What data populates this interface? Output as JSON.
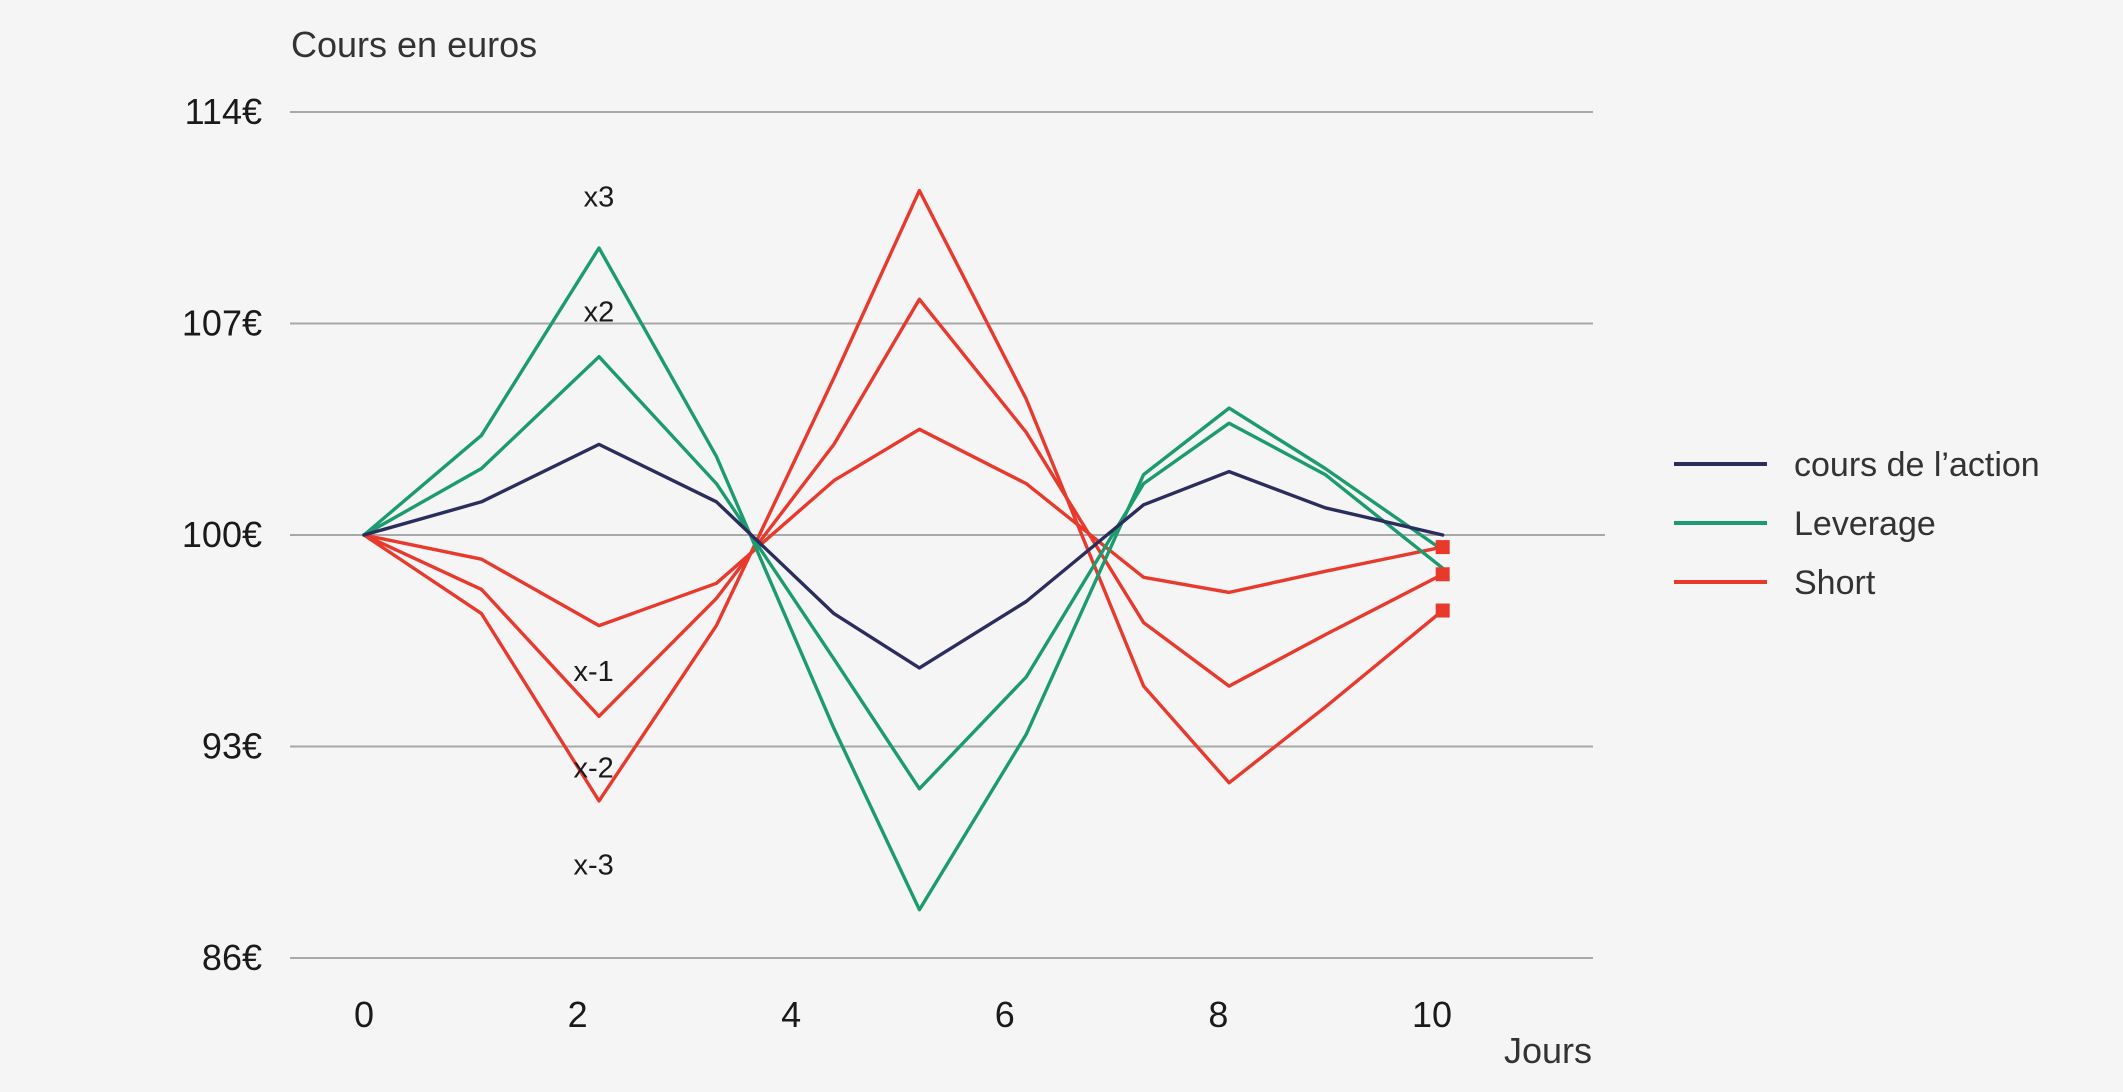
{
  "chart_data": {
    "type": "line",
    "ylabel": "Cours en euros",
    "xlabel": "Jours",
    "xlim": [
      -0.3,
      11.5
    ],
    "ylim": [
      86,
      114
    ],
    "x_ticks": [
      0,
      2,
      4,
      6,
      8,
      10
    ],
    "x_tick_labels": [
      "0",
      "2",
      "4",
      "6",
      "8",
      "10"
    ],
    "y_ticks": [
      86,
      93,
      100,
      107,
      114
    ],
    "y_tick_labels": [
      "86€",
      "93€",
      "100€",
      "107€",
      "114€"
    ],
    "grid": "horizontal",
    "legend_position": "right",
    "legend": [
      {
        "label": "cours de l’action",
        "color": "#2b2d5c"
      },
      {
        "label": "Leverage",
        "color": "#1c9c6e"
      },
      {
        "label": "Short",
        "color": "#e8392d"
      }
    ],
    "series": [
      {
        "group": "cours de l’action",
        "color": "#2b2d5c",
        "x": [
          0,
          1.1,
          2.2,
          3.3,
          4.4,
          5.2,
          6.2,
          7.3,
          8.1,
          9.0,
          10.1
        ],
        "y": [
          100,
          101.1,
          103.0,
          101.1,
          97.4,
          95.6,
          97.8,
          101.0,
          102.1,
          100.9,
          100.0
        ]
      },
      {
        "group": "Leverage",
        "color": "#1c9c6e",
        "x": [
          0,
          1.1,
          2.2,
          3.3,
          4.4,
          5.2,
          6.2,
          7.3,
          8.1,
          9.0,
          10.1
        ],
        "y": [
          100,
          102.2,
          105.9,
          101.7,
          95.9,
          91.6,
          95.3,
          101.7,
          103.7,
          102.0,
          98.9
        ]
      },
      {
        "group": "Leverage",
        "color": "#1c9c6e",
        "x": [
          0,
          1.1,
          2.2,
          3.3,
          4.4,
          5.2,
          6.2,
          7.3,
          8.1,
          9.0,
          10.1
        ],
        "y": [
          100,
          103.3,
          109.5,
          102.6,
          93.6,
          87.6,
          93.4,
          102.0,
          104.2,
          102.2,
          99.5
        ]
      },
      {
        "group": "Short",
        "color": "#e8392d",
        "x": [
          0,
          1.1,
          2.2,
          3.3,
          4.4,
          5.2,
          6.2,
          7.3,
          8.1,
          9.0,
          10.1
        ],
        "y": [
          100,
          99.2,
          97.0,
          98.4,
          101.8,
          103.5,
          101.7,
          98.6,
          98.1,
          98.8,
          99.6
        ]
      },
      {
        "group": "Short",
        "color": "#e8392d",
        "x": [
          0,
          1.1,
          2.2,
          3.3,
          4.4,
          5.2,
          6.2,
          7.3,
          8.1,
          9.0,
          10.1
        ],
        "y": [
          100,
          98.2,
          94.0,
          97.9,
          103.0,
          107.8,
          103.4,
          97.1,
          95.0,
          96.7,
          98.7
        ]
      },
      {
        "group": "Short",
        "color": "#e8392d",
        "x": [
          0,
          1.1,
          2.2,
          3.3,
          4.4,
          5.2,
          6.2,
          7.3,
          8.1,
          9.0,
          10.1
        ],
        "y": [
          100,
          97.4,
          91.2,
          97.0,
          105.2,
          111.4,
          104.5,
          95.0,
          91.8,
          94.3,
          97.5
        ]
      }
    ],
    "end_markers": [
      {
        "x": 10.1,
        "y": 99.6,
        "color": "#e8392d"
      },
      {
        "x": 10.1,
        "y": 98.7,
        "color": "#e8392d"
      },
      {
        "x": 10.1,
        "y": 97.5,
        "color": "#e8392d"
      }
    ],
    "annotations": [
      {
        "text": "x3",
        "x": 2.2,
        "y": 111.2
      },
      {
        "text": "x2",
        "x": 2.2,
        "y": 107.4
      },
      {
        "text": "x-1",
        "x": 2.15,
        "y": 95.5
      },
      {
        "text": "x-2",
        "x": 2.15,
        "y": 92.3
      },
      {
        "text": "x-3",
        "x": 2.15,
        "y": 89.1
      }
    ]
  }
}
